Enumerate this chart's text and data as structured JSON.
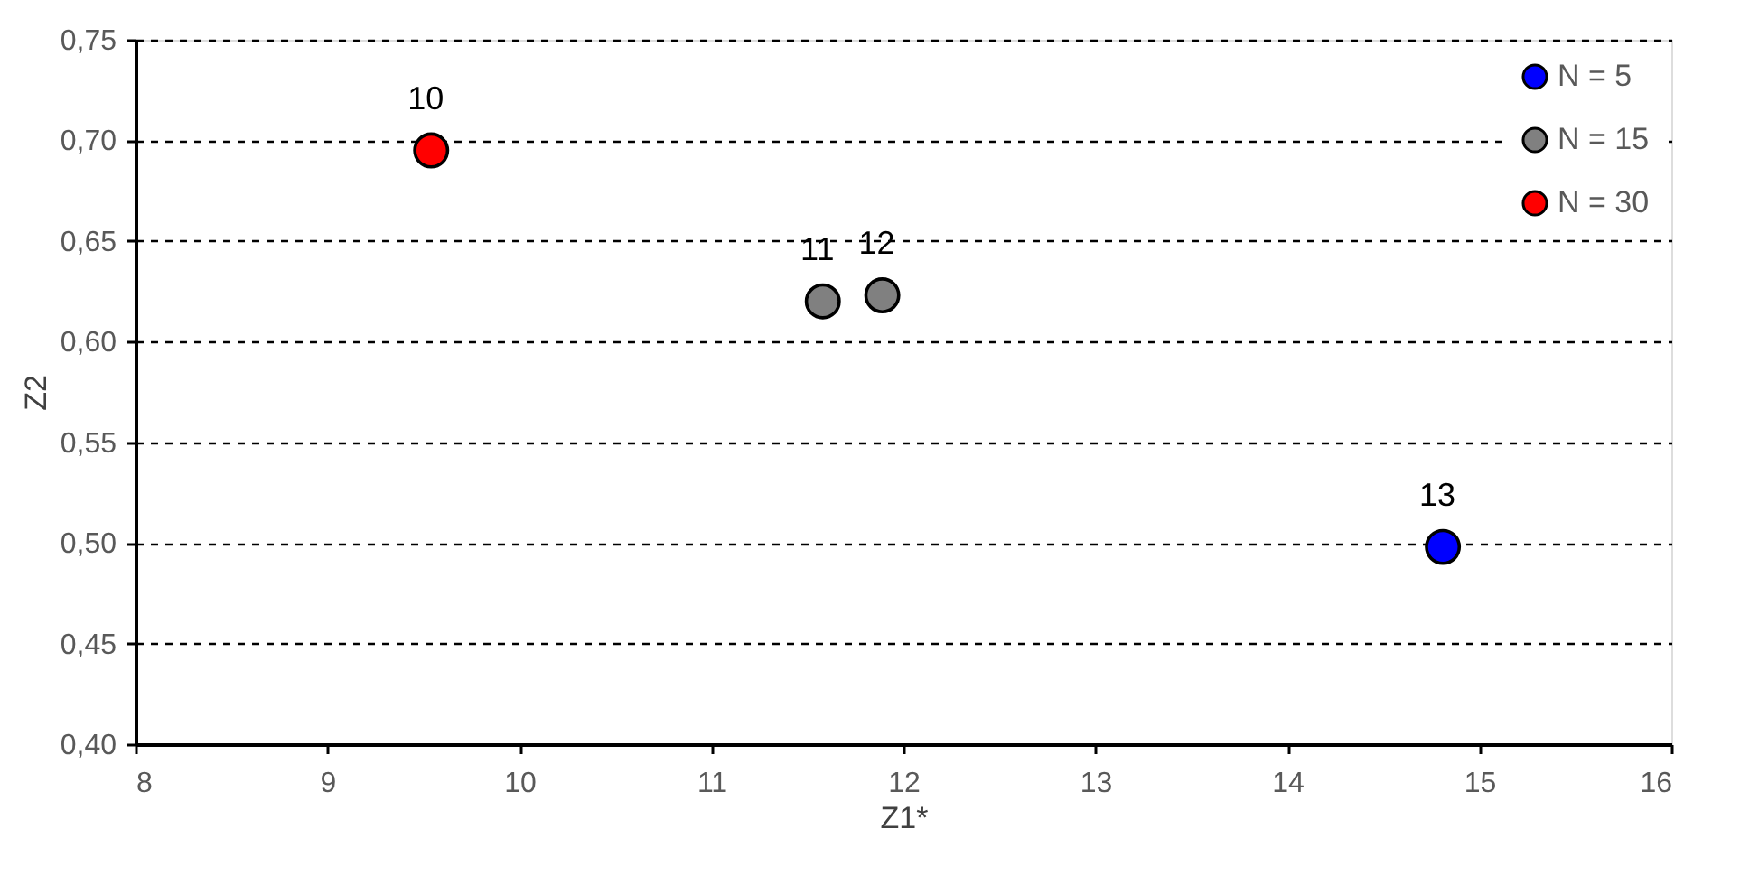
{
  "chart_data": {
    "type": "scatter",
    "xlabel": "Z1*",
    "ylabel": "Z2",
    "xlim": [
      8,
      16
    ],
    "xticks": [
      8,
      9,
      10,
      11,
      12,
      13,
      14,
      15,
      16
    ],
    "ylim": [
      0.4,
      0.75
    ],
    "yticks": [
      {
        "value": 0.4,
        "label": "0,40"
      },
      {
        "value": 0.45,
        "label": "0,45"
      },
      {
        "value": 0.5,
        "label": "0,50"
      },
      {
        "value": 0.55,
        "label": "0,55"
      },
      {
        "value": 0.6,
        "label": "0,60"
      },
      {
        "value": 0.65,
        "label": "0,65"
      },
      {
        "value": 0.7,
        "label": "0,70"
      },
      {
        "value": 0.75,
        "label": "0,75"
      }
    ],
    "grid": "y",
    "line_style": "dashed",
    "marker": "circle",
    "legend": "top right",
    "series": [
      {
        "name": "N = 5",
        "color": "#0000ff",
        "x": [
          14.81
        ],
        "values": [
          0.498
        ]
      },
      {
        "name": "N = 15",
        "color": "#808080",
        "x": [
          11.58,
          11.89
        ],
        "values": [
          0.62,
          0.623
        ]
      },
      {
        "name": "N = 30",
        "color": "#ff0000",
        "x": [
          9.54
        ],
        "values": [
          0.695
        ]
      }
    ],
    "annotations": [
      {
        "text": "10",
        "x": 9.54,
        "y": 0.695
      },
      {
        "text": "11",
        "x": 11.58,
        "y": 0.62
      },
      {
        "text": "12",
        "x": 11.89,
        "y": 0.623
      },
      {
        "text": "13",
        "x": 14.81,
        "y": 0.498
      }
    ]
  }
}
